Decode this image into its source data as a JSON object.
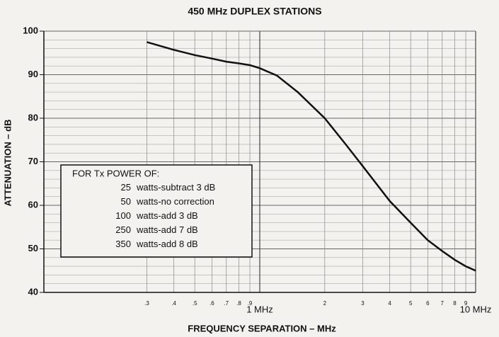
{
  "chart_data": {
    "type": "line",
    "title": "450 MHz DUPLEX STATIONS",
    "x_label": "FREQUENCY SEPARATION – MHz",
    "y_label": "ATTENUATION – dB",
    "log_x": true,
    "grid": true,
    "xlim": [
      0.1,
      10
    ],
    "ylim": [
      40,
      100
    ],
    "xticks": [
      {
        "value": 0.3,
        "label": ".3"
      },
      {
        "value": 0.4,
        "label": ".4"
      },
      {
        "value": 0.5,
        "label": ".5"
      },
      {
        "value": 0.6,
        "label": ".6"
      },
      {
        "value": 0.7,
        "label": ".7"
      },
      {
        "value": 0.8,
        "label": ".8"
      },
      {
        "value": 0.9,
        "label": ".9"
      },
      {
        "value": 1,
        "label": "1 MHz"
      },
      2,
      3,
      4,
      5,
      6,
      7,
      8,
      9,
      {
        "value": 10,
        "label": "10 MHz"
      }
    ],
    "yticks": [
      40,
      50,
      60,
      70,
      80,
      90,
      100
    ],
    "y_minor_ticks": [
      42,
      44,
      46,
      48,
      52,
      54,
      56,
      58,
      62,
      64,
      66,
      68,
      72,
      74,
      76,
      78,
      82,
      84,
      86,
      88,
      92,
      94,
      96,
      98
    ],
    "annotations": [
      "FOR Tx POWER OF:",
      "25  watts-subtract  3 dB",
      "50  watts-no  correction",
      "100  watts-add  3 dB",
      "250  watts-add  7 dB",
      "350  watts-add  8 dB"
    ],
    "series": [
      {
        "color": "#111111",
        "x": [
          0.3,
          0.4,
          0.5,
          0.6,
          0.7,
          0.8,
          0.9,
          1,
          1.2,
          1.5,
          2,
          2.5,
          3,
          4,
          5,
          6,
          7,
          8,
          9,
          10
        ],
        "values": [
          97.5,
          95.7,
          94.5,
          93.7,
          93,
          92.6,
          92.2,
          91.5,
          89.8,
          86,
          80,
          74,
          69,
          61,
          56,
          52,
          49.5,
          47.5,
          46,
          45
        ]
      }
    ]
  }
}
